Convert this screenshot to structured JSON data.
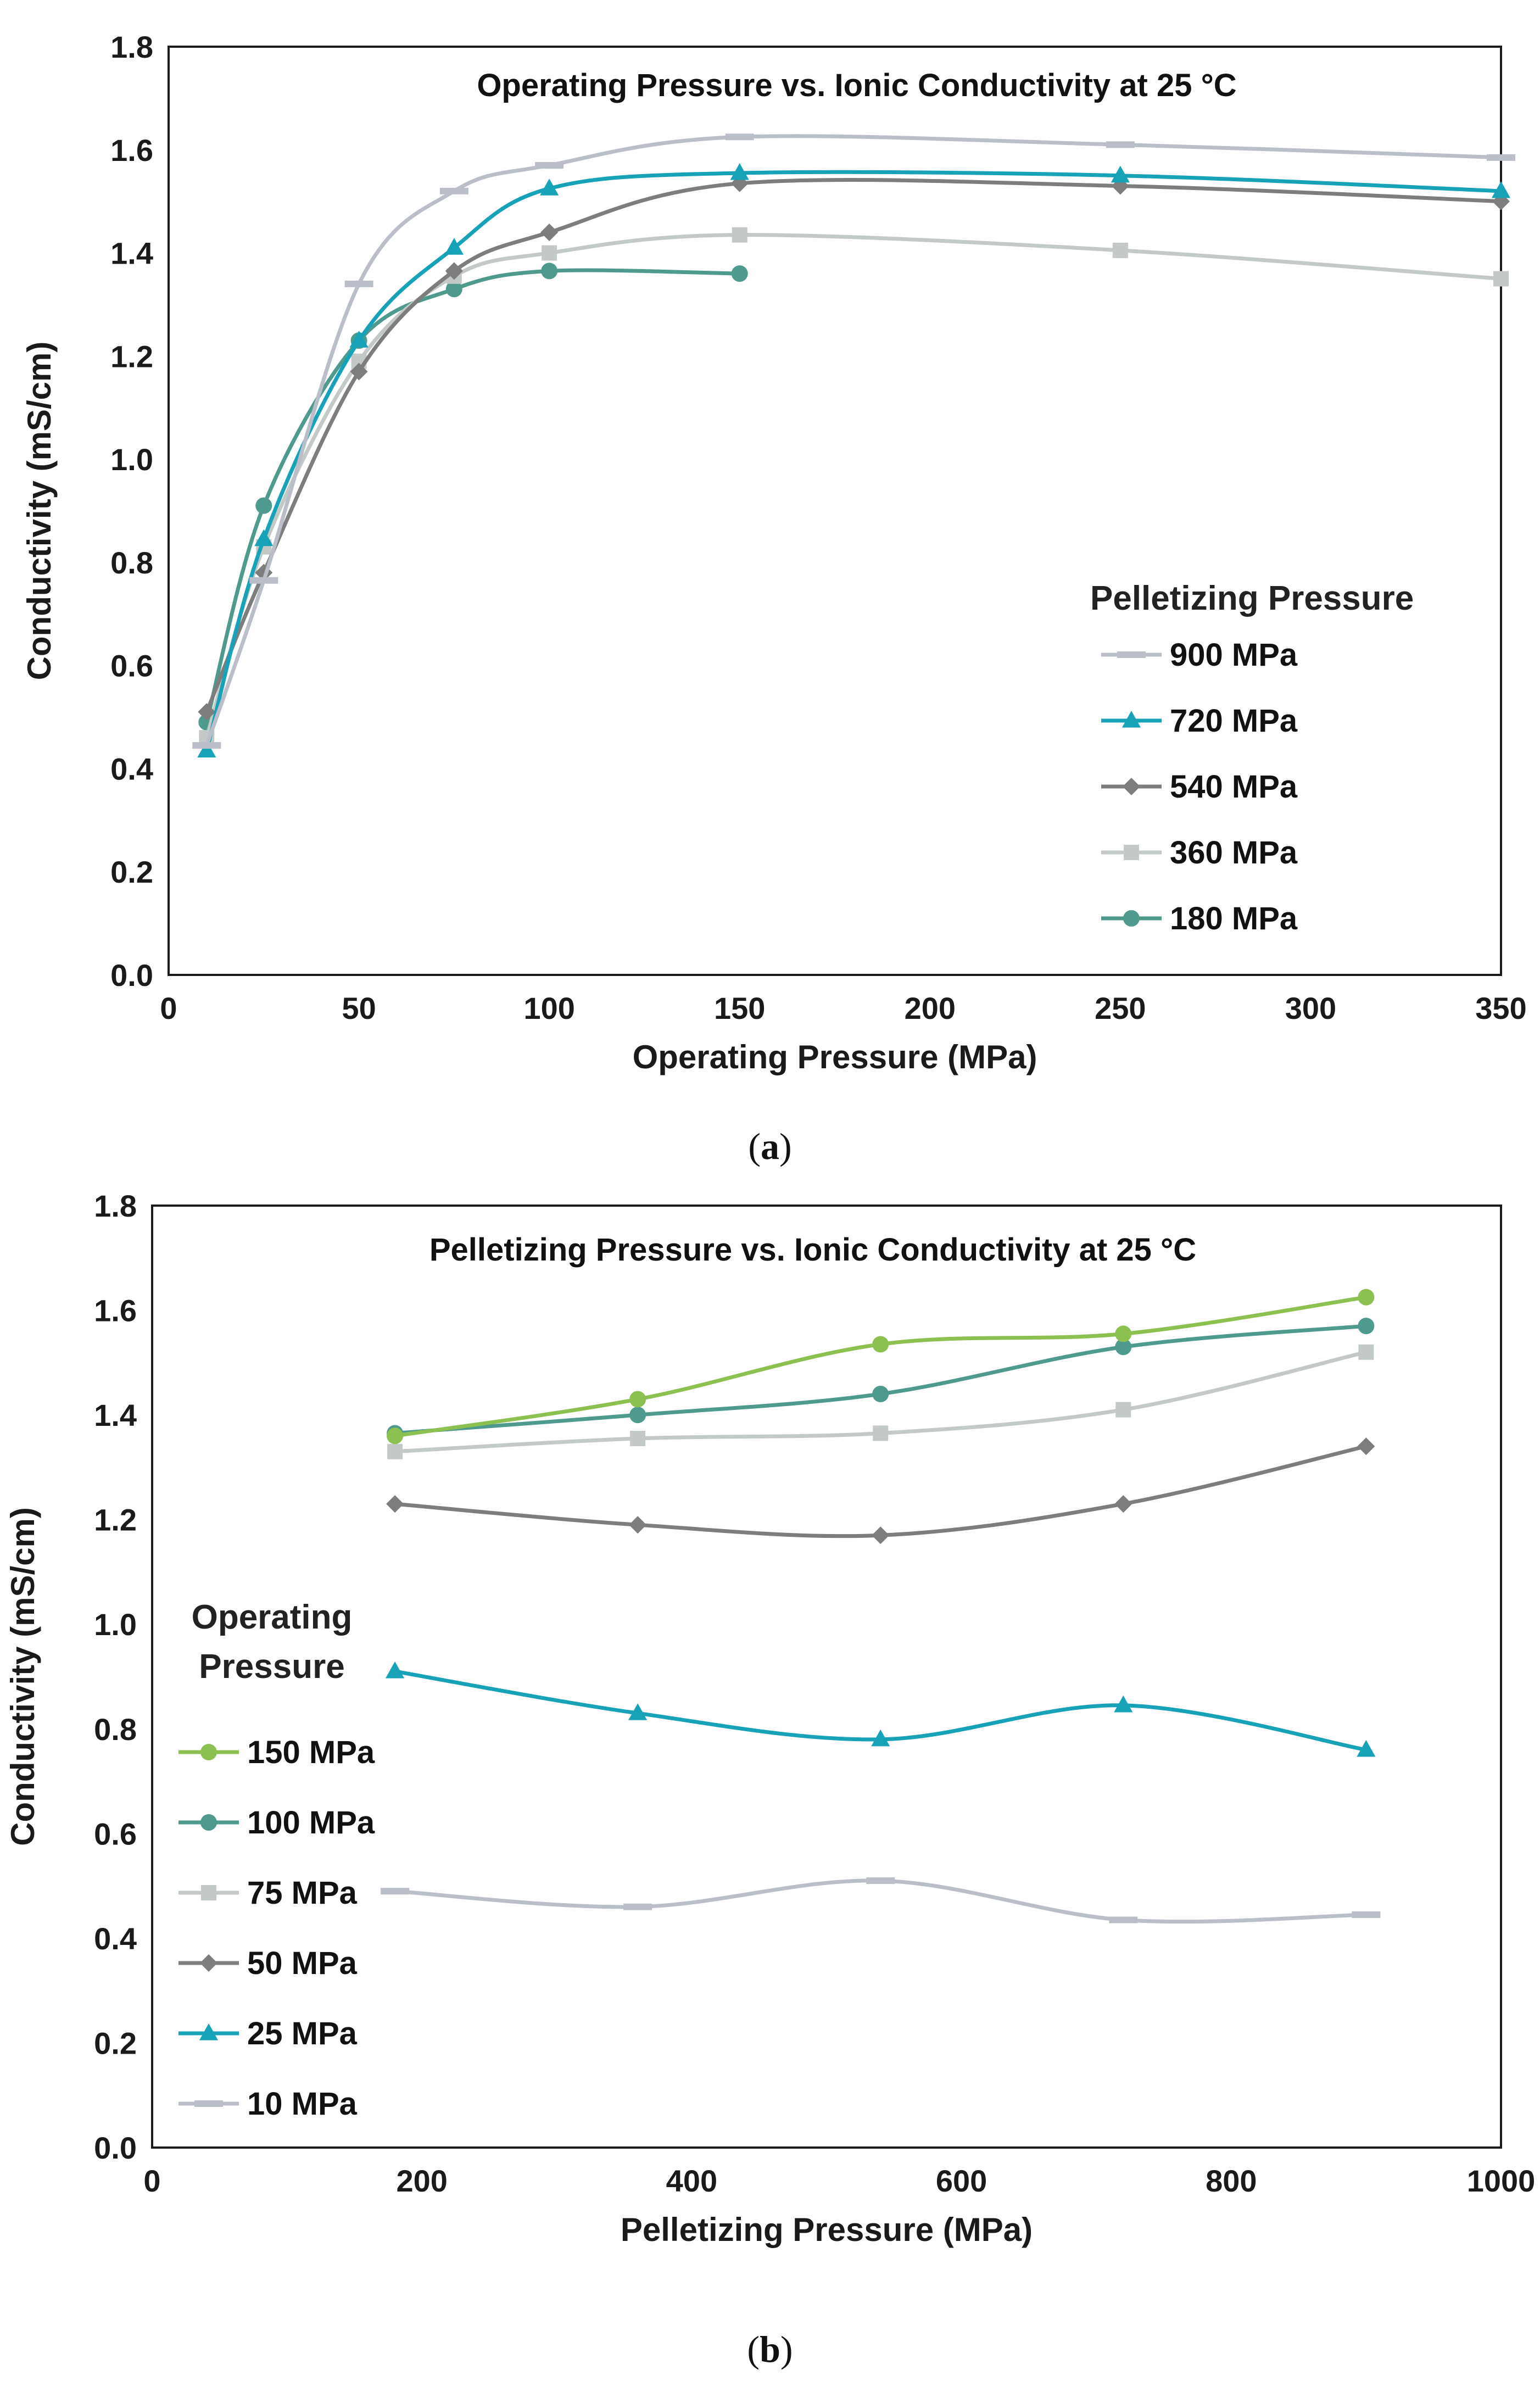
{
  "chart_data": [
    {
      "id": "a",
      "type": "line",
      "caption": "a",
      "title": "Operating Pressure vs. Ionic Conductivity at 25 °C",
      "xlabel": "Operating Pressure (MPa)",
      "ylabel": "Conductivity (mS/cm)",
      "xlim": [
        0,
        350
      ],
      "ylim": [
        0,
        1.8
      ],
      "xticks": [
        0,
        50,
        100,
        150,
        200,
        250,
        300,
        350
      ],
      "yticks": [
        0.0,
        0.2,
        0.4,
        0.6,
        0.8,
        1.0,
        1.2,
        1.4,
        1.6,
        1.8
      ],
      "xtick_labels": [
        "0",
        "50",
        "100",
        "150",
        "200",
        "250",
        "300",
        "350"
      ],
      "ytick_labels": [
        "0.0",
        "0.2",
        "0.4",
        "0.6",
        "0.8",
        "1.0",
        "1.2",
        "1.4",
        "1.6",
        "1.8"
      ],
      "legend_title": "Pelletizing Pressure",
      "legend_position": "bottom-right",
      "series": [
        {
          "name": "900 MPa",
          "color": "#b9bec9",
          "marker": "dash",
          "x": [
            10,
            25,
            50,
            75,
            100,
            150,
            250,
            350
          ],
          "y": [
            0.445,
            0.765,
            1.34,
            1.52,
            1.57,
            1.625,
            1.61,
            1.585
          ]
        },
        {
          "name": "720 MPa",
          "color": "#17a2b8",
          "marker": "triangle",
          "x": [
            10,
            25,
            50,
            75,
            100,
            150,
            250,
            350
          ],
          "y": [
            0.435,
            0.845,
            1.23,
            1.41,
            1.525,
            1.555,
            1.55,
            1.52
          ]
        },
        {
          "name": "540 MPa",
          "color": "#7d7d7d",
          "marker": "diamond",
          "x": [
            10,
            25,
            50,
            75,
            100,
            150,
            250,
            350
          ],
          "y": [
            0.51,
            0.78,
            1.17,
            1.365,
            1.44,
            1.535,
            1.53,
            1.5
          ]
        },
        {
          "name": "360 MPa",
          "color": "#c3c9c6",
          "marker": "square",
          "x": [
            10,
            25,
            50,
            75,
            100,
            150,
            250,
            350
          ],
          "y": [
            0.46,
            0.83,
            1.19,
            1.355,
            1.4,
            1.435,
            1.405,
            1.35
          ]
        },
        {
          "name": "180 MPa",
          "color": "#4e9a8e",
          "marker": "circle",
          "x": [
            10,
            25,
            50,
            75,
            100,
            150
          ],
          "y": [
            0.49,
            0.91,
            1.23,
            1.33,
            1.365,
            1.36
          ]
        }
      ]
    },
    {
      "id": "b",
      "type": "line",
      "caption": "b",
      "title": "Pelletizing Pressure vs. Ionic Conductivity at 25 °C",
      "xlabel": "Pelletizing Pressure (MPa)",
      "ylabel": "Conductivity (mS/cm)",
      "xlim": [
        0,
        1000
      ],
      "ylim": [
        0,
        1.8
      ],
      "xticks": [
        0,
        200,
        400,
        600,
        800,
        1000
      ],
      "yticks": [
        0.0,
        0.2,
        0.4,
        0.6,
        0.8,
        1.0,
        1.2,
        1.4,
        1.6,
        1.8
      ],
      "xtick_labels": [
        "0",
        "200",
        "400",
        "600",
        "800",
        "1000"
      ],
      "ytick_labels": [
        "0.0",
        "0.2",
        "0.4",
        "0.6",
        "0.8",
        "1.0",
        "1.2",
        "1.4",
        "1.6",
        "1.8"
      ],
      "legend_title": [
        "Operating",
        "Pressure"
      ],
      "legend_position": "left",
      "series": [
        {
          "name": "150 MPa",
          "color": "#8cc152",
          "marker": "circle",
          "x": [
            180,
            360,
            540,
            720,
            900
          ],
          "y": [
            1.36,
            1.43,
            1.535,
            1.555,
            1.625
          ]
        },
        {
          "name": "100 MPa",
          "color": "#4e9a8e",
          "marker": "circle",
          "x": [
            180,
            360,
            540,
            720,
            900
          ],
          "y": [
            1.365,
            1.4,
            1.44,
            1.53,
            1.57
          ]
        },
        {
          "name": "75 MPa",
          "color": "#c3c9c6",
          "marker": "square",
          "x": [
            180,
            360,
            540,
            720,
            900
          ],
          "y": [
            1.33,
            1.355,
            1.365,
            1.41,
            1.52
          ]
        },
        {
          "name": "50 MPa",
          "color": "#7d7d7d",
          "marker": "diamond",
          "x": [
            180,
            360,
            540,
            720,
            900
          ],
          "y": [
            1.23,
            1.19,
            1.17,
            1.23,
            1.34
          ]
        },
        {
          "name": "25 MPa",
          "color": "#17a2b8",
          "marker": "triangle",
          "x": [
            180,
            360,
            540,
            720,
            900
          ],
          "y": [
            0.91,
            0.83,
            0.78,
            0.845,
            0.76
          ]
        },
        {
          "name": "10 MPa",
          "color": "#b9bec9",
          "marker": "dash",
          "x": [
            180,
            360,
            540,
            720,
            900
          ],
          "y": [
            0.49,
            0.46,
            0.51,
            0.435,
            0.445
          ]
        }
      ]
    }
  ]
}
